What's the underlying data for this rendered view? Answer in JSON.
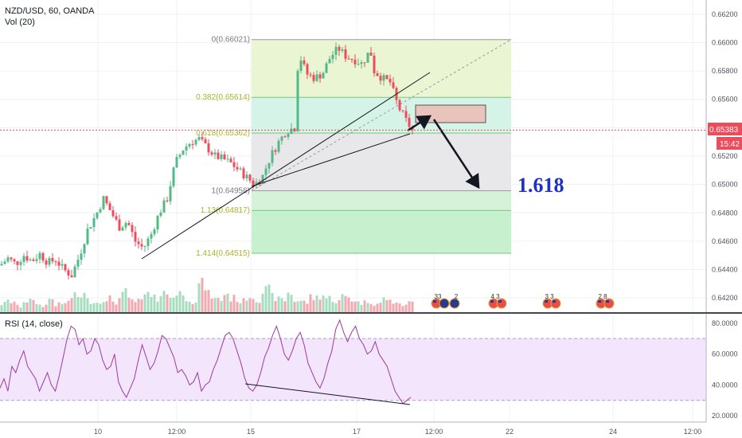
{
  "header": {
    "symbol": "NZD/USD, 60, OANDA",
    "volume": "Vol (20)"
  },
  "rsi_panel": {
    "label": "RSI (14, close)"
  },
  "price_badge": {
    "price": "0.65383",
    "countdown": "15:42"
  },
  "projection_label": "1.618",
  "events": [
    {
      "text": "33",
      "flags": [
        "us",
        "nz"
      ]
    },
    {
      "text": "2",
      "flags": [
        "nz"
      ]
    },
    {
      "text": "4 3",
      "flags": [
        "us",
        "us"
      ]
    },
    {
      "text": "3 3",
      "flags": [
        "us",
        "us"
      ]
    },
    {
      "text": "2 8",
      "flags": [
        "us",
        "us"
      ]
    }
  ],
  "colors": {
    "bull": "#53b987",
    "bear": "#eb4d5c",
    "rsi": "#9b3aa3",
    "fib_top": "#e9f5d3",
    "fib_382": "#d6f3e8",
    "fib_618": "#e8e8ea",
    "fib_113": "#d6f3da",
    "fib_1414": "#c7f0cf",
    "fib_line": "#7cc67b",
    "projection": "#1c31c7",
    "rsi_bg": "#f3e5fb"
  },
  "chart_data": [
    {
      "type": "candlestick",
      "title": "NZD/USD, 60, OANDA",
      "ylim": [
        0.641,
        0.663
      ],
      "y_ticks": [
        "0.66200",
        "0.66000",
        "0.65800",
        "0.65600",
        "0.65400",
        "0.65200",
        "0.65000",
        "0.64800",
        "0.64600",
        "0.64400",
        "0.64200"
      ],
      "x_ticks": [
        "10",
        "12:00",
        "15",
        "17",
        "12:00",
        "22",
        "24",
        "12:00"
      ],
      "current_price": 0.65383,
      "close_path": [
        [
          0,
          0.6443
        ],
        [
          10,
          0.6448
        ],
        [
          20,
          0.6444
        ],
        [
          30,
          0.645
        ],
        [
          40,
          0.6446
        ],
        [
          50,
          0.6451
        ],
        [
          60,
          0.6445
        ],
        [
          70,
          0.6447
        ],
        [
          80,
          0.644
        ],
        [
          90,
          0.6436
        ],
        [
          100,
          0.645
        ],
        [
          110,
          0.6468
        ],
        [
          120,
          0.6478
        ],
        [
          130,
          0.649
        ],
        [
          140,
          0.648
        ],
        [
          150,
          0.647
        ],
        [
          160,
          0.6474
        ],
        [
          170,
          0.646
        ],
        [
          180,
          0.6455
        ],
        [
          190,
          0.6465
        ],
        [
          200,
          0.648
        ],
        [
          210,
          0.649
        ],
        [
          220,
          0.6515
        ],
        [
          230,
          0.6525
        ],
        [
          240,
          0.653
        ],
        [
          250,
          0.6532
        ],
        [
          260,
          0.6526
        ],
        [
          270,
          0.652
        ],
        [
          280,
          0.6518
        ],
        [
          290,
          0.6515
        ],
        [
          300,
          0.651
        ],
        [
          310,
          0.6505
        ],
        [
          320,
          0.65
        ],
        [
          330,
          0.6506
        ],
        [
          340,
          0.652
        ],
        [
          350,
          0.653
        ],
        [
          360,
          0.6538
        ],
        [
          370,
          0.654
        ],
        [
          375,
          0.6593
        ],
        [
          385,
          0.6578
        ],
        [
          395,
          0.6575
        ],
        [
          405,
          0.6578
        ],
        [
          415,
          0.659
        ],
        [
          425,
          0.6596
        ],
        [
          435,
          0.659
        ],
        [
          445,
          0.6588
        ],
        [
          455,
          0.6585
        ],
        [
          465,
          0.6595
        ],
        [
          470,
          0.658
        ],
        [
          480,
          0.6575
        ],
        [
          490,
          0.6572
        ],
        [
          500,
          0.6555
        ],
        [
          510,
          0.6545
        ],
        [
          518,
          0.6538
        ]
      ],
      "volumes": [
        22,
        28,
        15,
        30,
        25,
        18,
        35,
        20,
        26,
        40,
        45,
        30,
        25,
        38,
        22,
        50,
        30,
        28,
        45,
        35,
        60,
        40,
        55,
        38,
        30,
        70,
        45,
        33,
        48,
        36,
        28,
        42,
        35,
        55,
        40,
        32,
        50,
        30,
        26,
        38,
        45,
        36,
        28,
        40,
        33,
        25,
        30,
        22,
        35,
        28,
        18,
        24,
        30,
        20
      ],
      "fibonacci": {
        "x_range": [
          "15",
          "22"
        ],
        "levels": [
          {
            "ratio": "0",
            "price": 0.66021,
            "label": "0(0.66021)"
          },
          {
            "ratio": "0.382",
            "price": 0.65614,
            "label": "0.382(0.65614)"
          },
          {
            "ratio": "0.618",
            "price": 0.65362,
            "label": "0.618(0.65362)"
          },
          {
            "ratio": "1",
            "price": 0.64956,
            "label": "1(0.64956)"
          },
          {
            "ratio": "1.13",
            "price": 0.64817,
            "label": "1.13(0.64817)"
          },
          {
            "ratio": "1.414",
            "price": 0.64515,
            "label": "1.414(0.64515)"
          }
        ]
      }
    },
    {
      "type": "line",
      "title": "RSI (14, close)",
      "ylim": [
        17,
        84
      ],
      "y_ticks": [
        "80.0000",
        "60.0000",
        "40.0000",
        "20.0000"
      ],
      "levels": [
        70,
        30
      ],
      "values": [
        38,
        44,
        36,
        52,
        48,
        56,
        62,
        52,
        48,
        44,
        36,
        42,
        48,
        40,
        36,
        46,
        58,
        70,
        78,
        76,
        66,
        70,
        60,
        62,
        70,
        66,
        56,
        50,
        52,
        60,
        42,
        36,
        32,
        38,
        44,
        56,
        66,
        58,
        50,
        54,
        62,
        72,
        70,
        64,
        58,
        48,
        50,
        46,
        40,
        42,
        48,
        36,
        40,
        42,
        50,
        56,
        64,
        72,
        74,
        70,
        62,
        54,
        44,
        38,
        36,
        40,
        48,
        58,
        64,
        72,
        78,
        70,
        60,
        56,
        62,
        70,
        74,
        66,
        54,
        48,
        42,
        38,
        44,
        54,
        62,
        76,
        82,
        74,
        68,
        74,
        78,
        70,
        66,
        60,
        62,
        68,
        60,
        56,
        52,
        44,
        36,
        32,
        28,
        30,
        32
      ]
    }
  ]
}
